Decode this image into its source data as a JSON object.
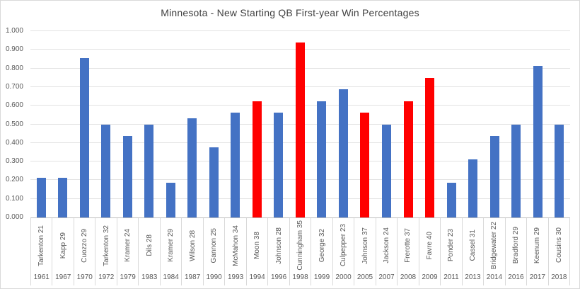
{
  "colors": {
    "blue": "#4472C4",
    "red": "#FF0000",
    "gridline": "#E2E2E2",
    "axis_line": "#BFBFBF",
    "divider": "#D9D9D9",
    "label_text": "#595959",
    "title_text": "#404040",
    "background": "#FFFFFF"
  },
  "chart_data": {
    "type": "bar",
    "title": "Minnesota - New Starting QB First-year Win Percentages",
    "xlabel": "",
    "ylabel": "",
    "ylim": [
      0,
      1
    ],
    "ytick_step": 0.1,
    "ytick_labels": [
      "0.000",
      "0.100",
      "0.200",
      "0.300",
      "0.400",
      "0.500",
      "0.600",
      "0.700",
      "0.800",
      "0.900",
      "1.000"
    ],
    "grid": true,
    "legend": "none",
    "bars": [
      {
        "label": "Tarkenton 21",
        "year": "1961",
        "value": 0.214,
        "color": "blue"
      },
      {
        "label": "Kapp 29",
        "year": "1967",
        "value": 0.214,
        "color": "blue"
      },
      {
        "label": "Cuozzo 29",
        "year": "1970",
        "value": 0.857,
        "color": "blue"
      },
      {
        "label": "Tarkenton 32",
        "year": "1972",
        "value": 0.5,
        "color": "blue"
      },
      {
        "label": "Kramer 24",
        "year": "1979",
        "value": 0.438,
        "color": "blue"
      },
      {
        "label": "Dils 28",
        "year": "1983",
        "value": 0.5,
        "color": "blue"
      },
      {
        "label": "Kramer 29",
        "year": "1984",
        "value": 0.188,
        "color": "blue"
      },
      {
        "label": "Wilson 28",
        "year": "1987",
        "value": 0.533,
        "color": "blue"
      },
      {
        "label": "Gannon 25",
        "year": "1990",
        "value": 0.375,
        "color": "blue"
      },
      {
        "label": "McMahon 34",
        "year": "1993",
        "value": 0.563,
        "color": "blue"
      },
      {
        "label": "Moon 38",
        "year": "1994",
        "value": 0.625,
        "color": "red"
      },
      {
        "label": "Johnson 28",
        "year": "1996",
        "value": 0.563,
        "color": "blue"
      },
      {
        "label": "Cunningham 35",
        "year": "1998",
        "value": 0.938,
        "color": "red"
      },
      {
        "label": "George 32",
        "year": "1999",
        "value": 0.625,
        "color": "blue"
      },
      {
        "label": "Culpepper 23",
        "year": "2000",
        "value": 0.688,
        "color": "blue"
      },
      {
        "label": "Johnson 37",
        "year": "2005",
        "value": 0.563,
        "color": "red"
      },
      {
        "label": "Jackson 24",
        "year": "2007",
        "value": 0.5,
        "color": "blue"
      },
      {
        "label": "Frerotte 37",
        "year": "2008",
        "value": 0.625,
        "color": "red"
      },
      {
        "label": "Favre 40",
        "year": "2009",
        "value": 0.75,
        "color": "red"
      },
      {
        "label": "Ponder 23",
        "year": "2011",
        "value": 0.188,
        "color": "blue"
      },
      {
        "label": "Cassel 31",
        "year": "2013",
        "value": 0.313,
        "color": "blue"
      },
      {
        "label": "Bridgewater 22",
        "year": "2014",
        "value": 0.438,
        "color": "blue"
      },
      {
        "label": "Bradford 29",
        "year": "2016",
        "value": 0.5,
        "color": "blue"
      },
      {
        "label": "Keenum 29",
        "year": "2017",
        "value": 0.813,
        "color": "blue"
      },
      {
        "label": "Cousins 30",
        "year": "2018",
        "value": 0.5,
        "color": "blue"
      }
    ]
  }
}
